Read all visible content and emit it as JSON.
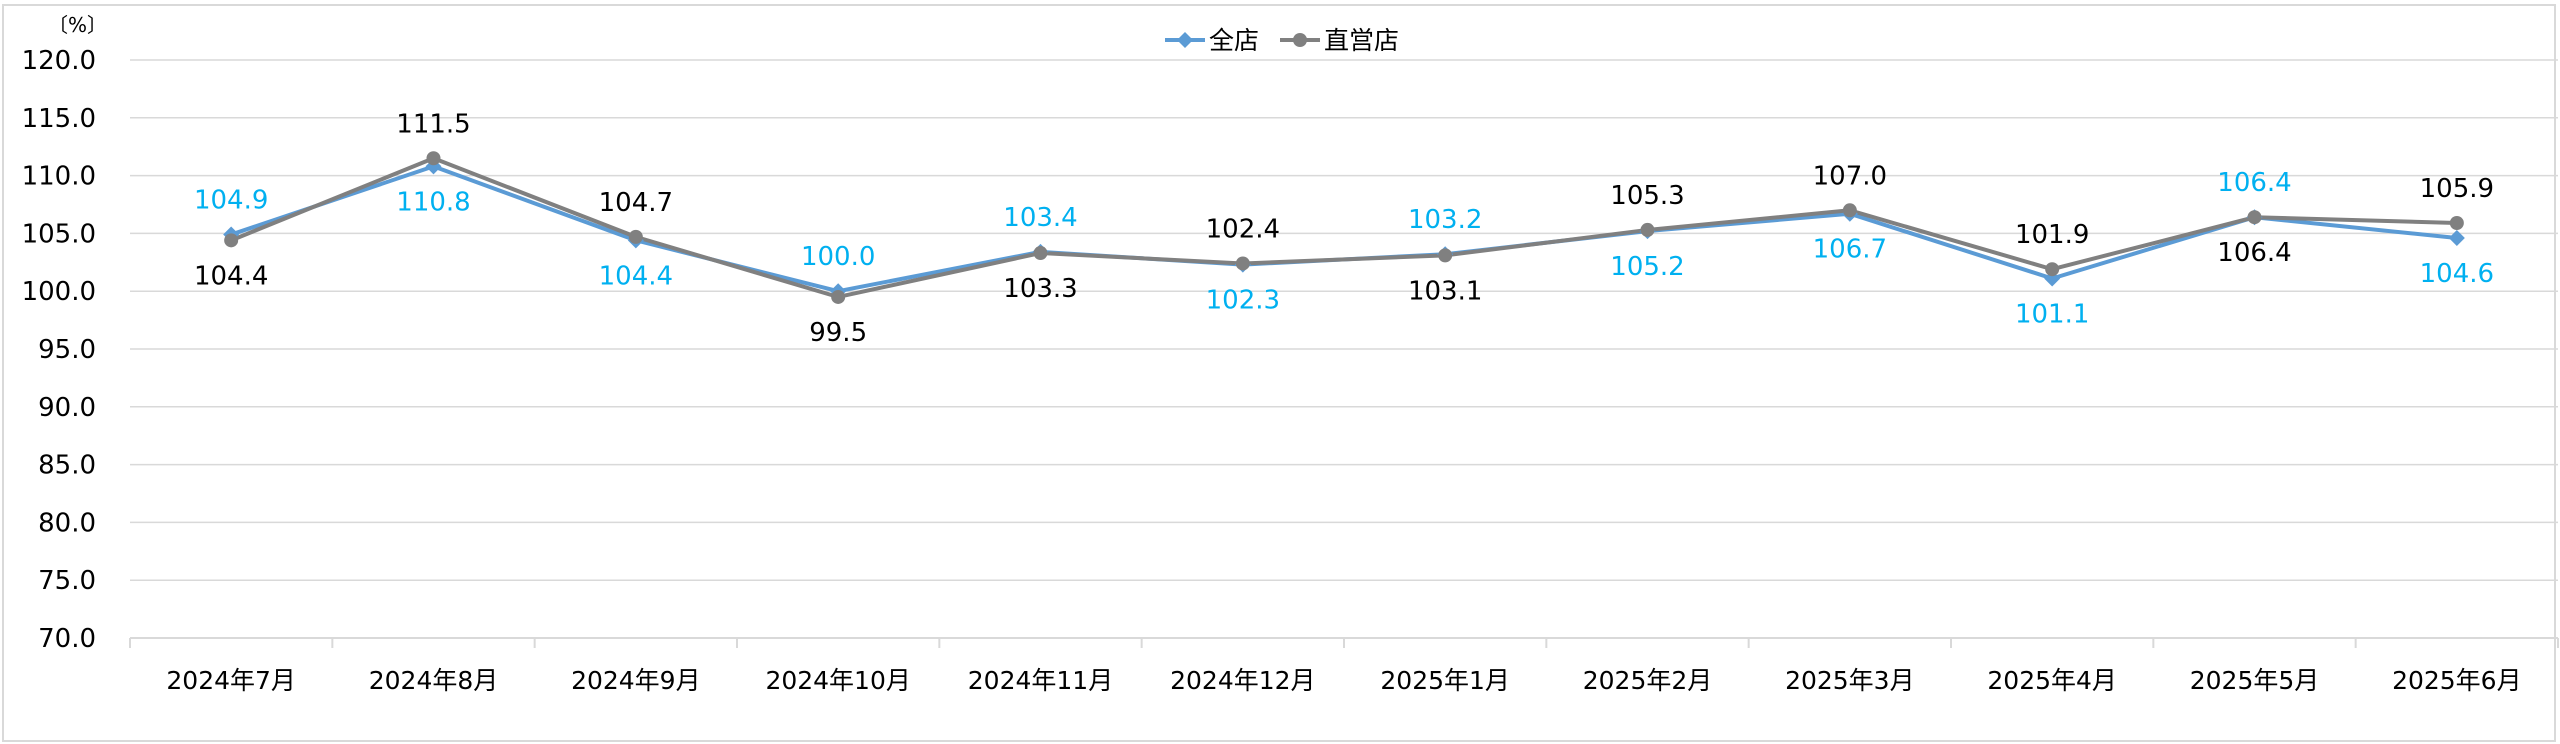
{
  "chart_data": {
    "type": "line",
    "unit_label": "〔%〕",
    "categories": [
      "2024年7月",
      "2024年8月",
      "2024年9月",
      "2024年10月",
      "2024年11月",
      "2024年12月",
      "2025年1月",
      "2025年2月",
      "2025年3月",
      "2025年4月",
      "2025年5月",
      "2025年6月"
    ],
    "ylim": [
      70.0,
      120.0
    ],
    "yticks": [
      "120.0",
      "115.0",
      "110.0",
      "105.0",
      "100.0",
      "95.0",
      "90.0",
      "85.0",
      "80.0",
      "75.0",
      "70.0"
    ],
    "grid": true,
    "legend_position": "top-center",
    "series": [
      {
        "name": "全店",
        "color": "#5b9bd5",
        "marker": "diamond",
        "label_color": "#00b0f0",
        "values": [
          104.9,
          110.8,
          104.4,
          100.0,
          103.4,
          102.3,
          103.2,
          105.2,
          106.7,
          101.1,
          106.4,
          104.6
        ],
        "labels": [
          "104.9",
          "110.8",
          "104.4",
          "100.0",
          "103.4",
          "102.3",
          "103.2",
          "105.2",
          "106.7",
          "101.1",
          "106.4",
          "104.6"
        ]
      },
      {
        "name": "直営店",
        "color": "#808080",
        "marker": "circle",
        "label_color": "#000000",
        "values": [
          104.4,
          111.5,
          104.7,
          99.5,
          103.3,
          102.4,
          103.1,
          105.3,
          107.0,
          101.9,
          106.4,
          105.9
        ],
        "labels": [
          "104.4",
          "111.5",
          "104.7",
          "99.5",
          "103.3",
          "102.4",
          "103.1",
          "105.3",
          "107.0",
          "101.9",
          "106.4",
          "105.9"
        ]
      }
    ]
  }
}
